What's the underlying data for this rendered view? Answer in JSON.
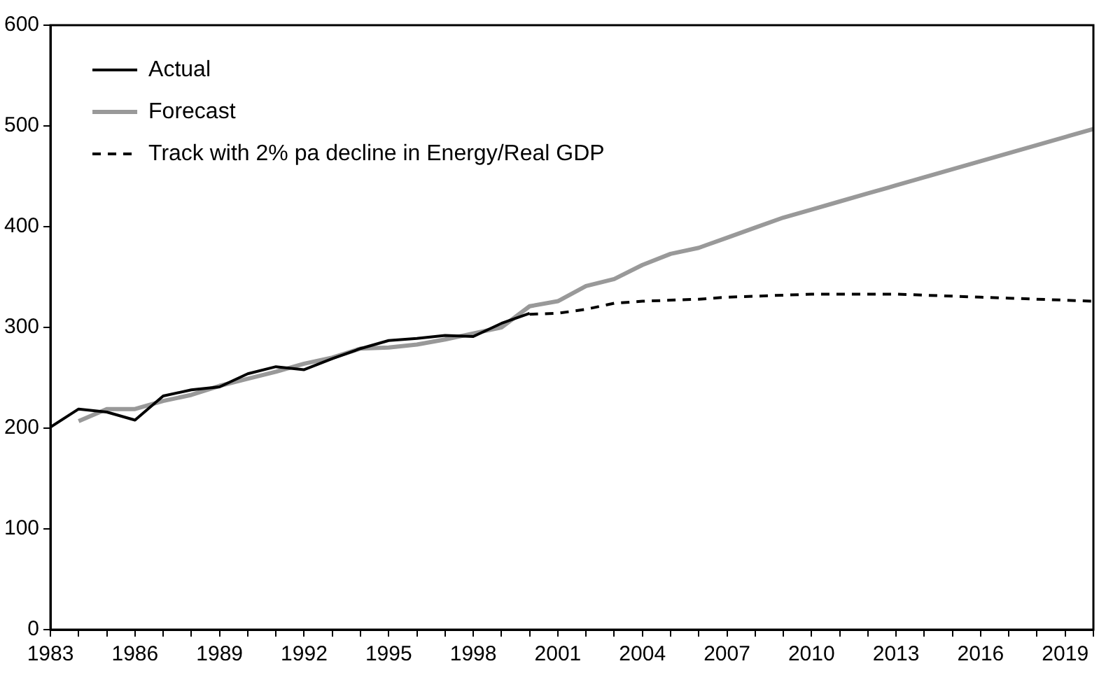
{
  "chart_data": {
    "type": "line",
    "legend": "top left",
    "grid": false,
    "line_style": "solid",
    "marker": "none",
    "xlim": [
      1983,
      2020
    ],
    "ylim": [
      0,
      600
    ],
    "yticks": [
      0,
      100,
      200,
      300,
      400,
      500,
      600
    ],
    "xticks": [
      1983,
      {
        "value": 1984,
        "label": null
      },
      {
        "value": 1985,
        "label": null
      },
      1986,
      {
        "value": 1987,
        "label": null
      },
      {
        "value": 1988,
        "label": null
      },
      1989,
      {
        "value": 1990,
        "label": null
      },
      {
        "value": 1991,
        "label": null
      },
      1992,
      {
        "value": 1993,
        "label": null
      },
      {
        "value": 1994,
        "label": null
      },
      1995,
      {
        "value": 1996,
        "label": null
      },
      {
        "value": 1997,
        "label": null
      },
      1998,
      {
        "value": 1999,
        "label": null
      },
      {
        "value": 2000,
        "label": null
      },
      2001,
      {
        "value": 2002,
        "label": null
      },
      {
        "value": 2003,
        "label": null
      },
      2004,
      {
        "value": 2005,
        "label": null
      },
      {
        "value": 2006,
        "label": null
      },
      2007,
      {
        "value": 2008,
        "label": null
      },
      {
        "value": 2009,
        "label": null
      },
      2010,
      {
        "value": 2011,
        "label": null
      },
      {
        "value": 2012,
        "label": null
      },
      2013,
      {
        "value": 2014,
        "label": null
      },
      {
        "value": 2015,
        "label": null
      },
      2016,
      {
        "value": 2017,
        "label": null
      },
      {
        "value": 2018,
        "label": null
      },
      2019,
      {
        "value": 2020,
        "label": null
      }
    ],
    "series": [
      {
        "name": "Actual",
        "color": "#000000",
        "x": [
          1983,
          1984,
          1985,
          1986,
          1987,
          1988,
          1989,
          1990,
          1991,
          1992,
          1993,
          1994,
          1995,
          1996,
          1997,
          1998,
          1999,
          2000
        ],
        "values": [
          201,
          219,
          216,
          208,
          232,
          238,
          241,
          254,
          261,
          258,
          269,
          279,
          287,
          289,
          292,
          291,
          304,
          314
        ]
      },
      {
        "name": "Forecast",
        "color": "#999999",
        "x": [
          1984,
          1985,
          1986,
          1987,
          1988,
          1989,
          1990,
          1991,
          1992,
          1993,
          1994,
          1995,
          1996,
          1997,
          1998,
          1999,
          2000,
          2001,
          2002,
          2003,
          2004,
          2005,
          2006,
          2007,
          2008,
          2009,
          2010,
          2011,
          2012,
          2013,
          2014,
          2015,
          2016,
          2017,
          2018,
          2019,
          2020
        ],
        "values": [
          207,
          219,
          219,
          227,
          233,
          242,
          249,
          256,
          264,
          270,
          279,
          280,
          283,
          288,
          294,
          300,
          321,
          326,
          341,
          348,
          362,
          373,
          379,
          389,
          399,
          409,
          417,
          425,
          433,
          441,
          449,
          457,
          465,
          473,
          481,
          489,
          497
        ]
      },
      {
        "name": "Track with 2% pa decline in Energy/Real GDP",
        "color": "#000000",
        "line_style": "dashed",
        "x": [
          2000,
          2001,
          2002,
          2003,
          2004,
          2005,
          2006,
          2007,
          2008,
          2009,
          2010,
          2011,
          2012,
          2013,
          2014,
          2015,
          2016,
          2017,
          2018,
          2019,
          2020
        ],
        "values": [
          313,
          314,
          318,
          324,
          326,
          327,
          328,
          330,
          331,
          332,
          333,
          333,
          333,
          333,
          332,
          331,
          330,
          329,
          328,
          327,
          326
        ]
      }
    ]
  }
}
